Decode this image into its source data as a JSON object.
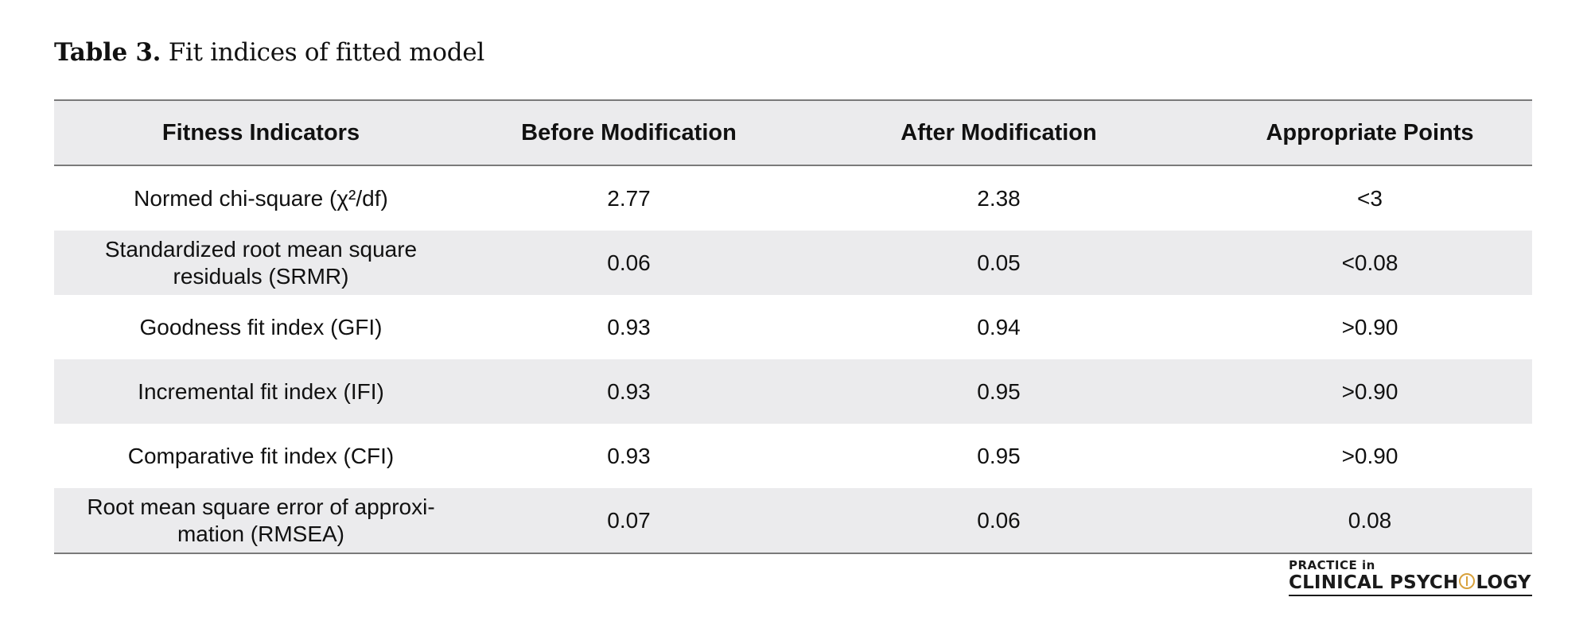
{
  "caption": {
    "label": "Table 3.",
    "text": "Fit indices of fitted model"
  },
  "table": {
    "headers": [
      "Fitness Indicators",
      "Before Modification",
      "After Modification",
      "Appropriate Points"
    ],
    "rows": [
      {
        "indicator": "Normed chi-square (χ²/df)",
        "before": "2.77",
        "after": "2.38",
        "points": "<3"
      },
      {
        "indicator": "Standardized root mean square residuals (SRMR)",
        "before": "0.06",
        "after": "0.05",
        "points": "<0.08"
      },
      {
        "indicator": "Goodness fit index (GFI)",
        "before": "0.93",
        "after": "0.94",
        "points": ">0.90"
      },
      {
        "indicator": "Incremental fit index (IFI)",
        "before": "0.93",
        "after": "0.95",
        "points": ">0.90"
      },
      {
        "indicator": "Comparative fit index (CFI)",
        "before": "0.93",
        "after": "0.95",
        "points": ">0.90"
      },
      {
        "indicator": "Root mean square error of approxi-mation (RMSEA)",
        "before": "0.07",
        "after": "0.06",
        "points": "0.08"
      }
    ]
  },
  "logo": {
    "top": "PRACTICE in",
    "bottom_pre": "CLINICAL PSYCH",
    "bottom_post": "LOGY",
    "accent_color": "#d8a13c",
    "icon": "psi-circle-icon"
  }
}
